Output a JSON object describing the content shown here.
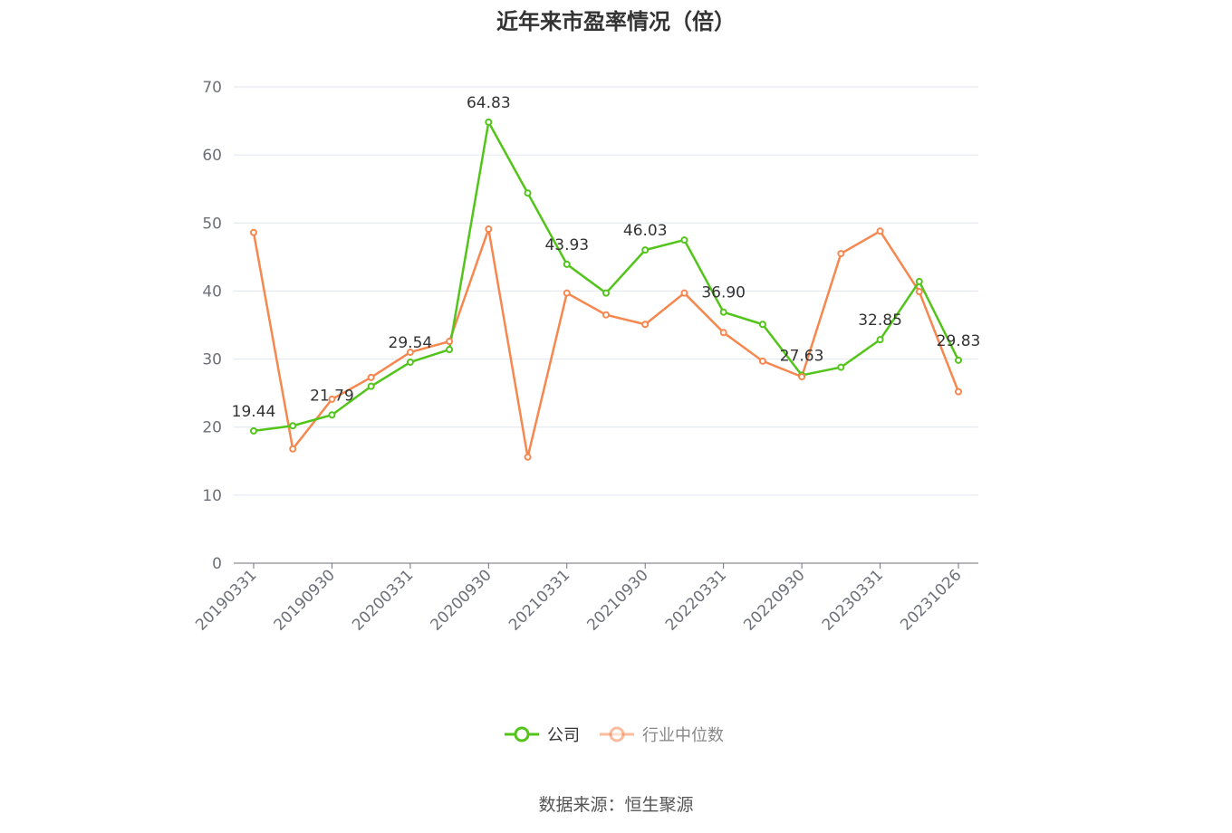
{
  "chart_data": {
    "type": "line",
    "title": "近年来市盈率情况（倍）",
    "x": [
      "20190331",
      "20190630",
      "20190930",
      "20191231",
      "20200331",
      "20200630",
      "20200930",
      "20201231",
      "20210331",
      "20210630",
      "20210930",
      "20211231",
      "20220331",
      "20220630",
      "20220930",
      "20221231",
      "20230331",
      "20230630",
      "20231026"
    ],
    "x_tick_labels": [
      "20190331",
      "20190930",
      "20200331",
      "20200930",
      "20210331",
      "20210930",
      "20220331",
      "20220930",
      "20230331",
      "20231026"
    ],
    "ylim": [
      0,
      70
    ],
    "y_ticks": [
      0,
      10,
      20,
      30,
      40,
      50,
      60,
      70
    ],
    "grid": true,
    "legend_placement": "bottom",
    "series": [
      {
        "name": "公司",
        "color": "#52c41a",
        "values": [
          19.44,
          20.2,
          21.79,
          26.0,
          29.54,
          31.4,
          64.83,
          54.4,
          43.93,
          39.7,
          46.03,
          47.5,
          36.9,
          35.1,
          27.63,
          28.8,
          32.85,
          41.4,
          29.83
        ],
        "data_labels": {
          "0": "19.44",
          "2": "21.79",
          "4": "29.54",
          "6": "64.83",
          "8": "43.93",
          "10": "46.03",
          "12": "36.90",
          "14": "27.63",
          "16": "32.85",
          "18": "29.83"
        }
      },
      {
        "name": "行业中位数",
        "color": "#f5874f",
        "values": [
          48.6,
          16.8,
          24.1,
          27.3,
          31.0,
          32.6,
          49.1,
          15.6,
          39.7,
          36.5,
          35.1,
          39.7,
          33.9,
          29.7,
          27.4,
          45.5,
          48.8,
          39.9,
          25.2
        ]
      }
    ]
  },
  "source": "数据来源：恒生聚源"
}
